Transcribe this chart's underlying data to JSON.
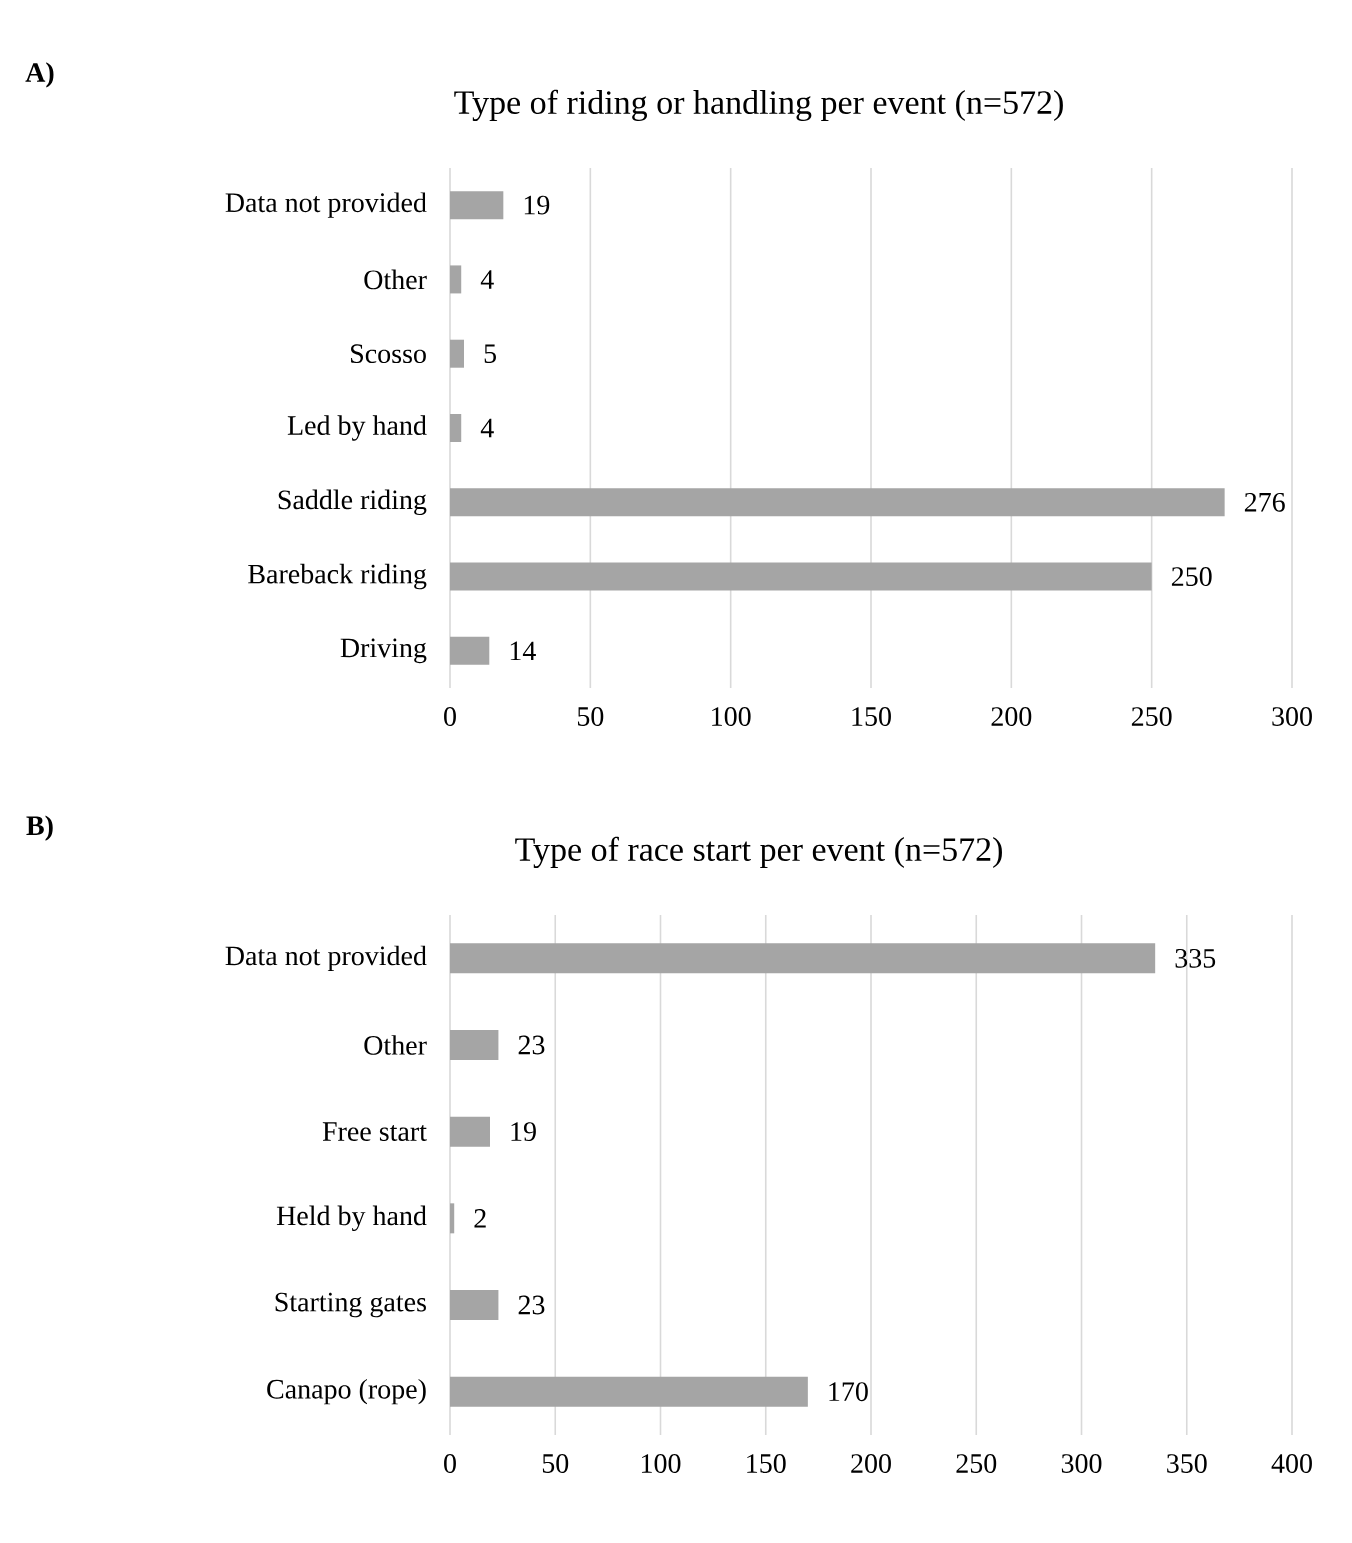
{
  "chart_data": [
    {
      "type": "bar",
      "orientation": "horizontal",
      "title": "Type of riding or handling per event (n=572)",
      "annotations": [
        "A)"
      ],
      "categories": [
        "Data not provided",
        "Other",
        "Scosso",
        "Led by hand",
        "Saddle riding",
        "Bareback riding",
        "Driving"
      ],
      "values": [
        19,
        4,
        5,
        4,
        276,
        250,
        14
      ],
      "color": "#a5a5a5",
      "xlim": [
        0,
        300
      ],
      "xticks": [
        0,
        50,
        100,
        150,
        200,
        250,
        300
      ],
      "grid": "x",
      "data_labels": true
    },
    {
      "type": "bar",
      "orientation": "horizontal",
      "title": "Type of race start per event (n=572)",
      "annotations": [
        "B)"
      ],
      "categories": [
        "Data not provided",
        "Other",
        "Free start",
        "Held by hand",
        "Starting gates",
        "Canapo (rope)"
      ],
      "values": [
        335,
        23,
        19,
        2,
        23,
        170
      ],
      "color": "#a5a5a5",
      "xlim": [
        0,
        400
      ],
      "xticks": [
        0,
        50,
        100,
        150,
        200,
        250,
        300,
        350,
        400
      ],
      "grid": "x",
      "data_labels": true
    }
  ]
}
